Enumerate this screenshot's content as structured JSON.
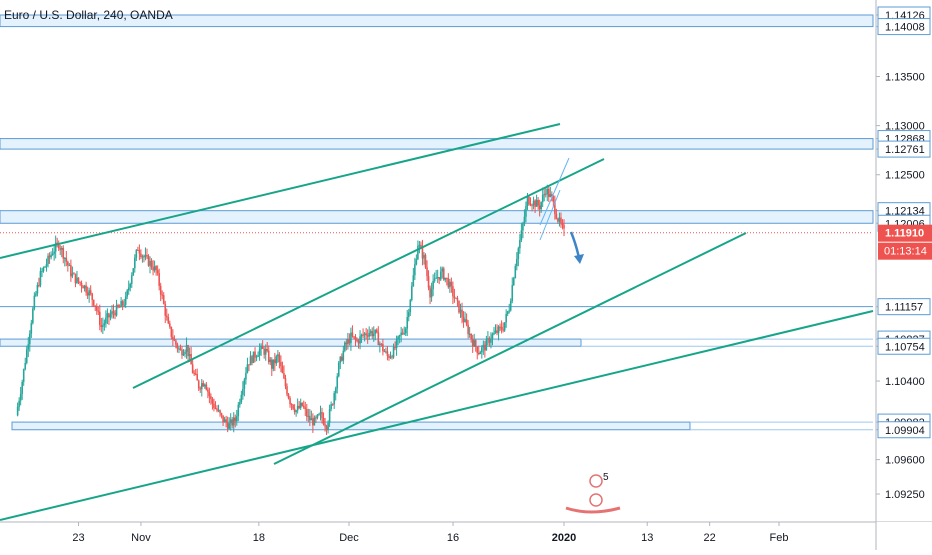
{
  "header": {
    "title": "Euro / U.S. Dollar, 240, OANDA"
  },
  "chart_data": {
    "type": "candlestick",
    "symbol": "EURUSD",
    "timeframe": "240",
    "ylim": [
      1.09,
      1.144
    ],
    "grid": false,
    "x_tick_labels": [
      "23",
      "Nov",
      "18",
      "Dec",
      "16",
      "2020",
      "13",
      "22",
      "Feb"
    ],
    "y_tick_labels": [
      "1.14126",
      "1.14008",
      "1.13500",
      "1.13000",
      "1.12868",
      "1.12761",
      "1.12500",
      "1.12134",
      "1.12006",
      "1.11157",
      "1.10827",
      "1.10754",
      "1.10400",
      "1.09982",
      "1.09904",
      "1.09600",
      "1.09250"
    ],
    "current_price": {
      "value": "1.11910",
      "countdown": "01:13:14"
    },
    "horizontal_zones": [
      {
        "top": 1.14126,
        "bottom": 1.14008
      },
      {
        "top": 1.12868,
        "bottom": 1.12761
      },
      {
        "top": 1.12134,
        "bottom": 1.12006
      },
      {
        "top": 1.10827,
        "bottom": 1.10754
      },
      {
        "top": 1.09982,
        "bottom": 1.09904
      }
    ],
    "horizontal_lines": [
      1.11157
    ],
    "close_series": [
      1.1005,
      1.104,
      1.1082,
      1.1122,
      1.1148,
      1.116,
      1.1172,
      1.118,
      1.1166,
      1.115,
      1.1142,
      1.1138,
      1.113,
      1.1118,
      1.1095,
      1.1104,
      1.111,
      1.1115,
      1.1122,
      1.115,
      1.1176,
      1.1166,
      1.116,
      1.1152,
      1.1125,
      1.1095,
      1.108,
      1.107,
      1.1075,
      1.105,
      1.1035,
      1.104,
      1.102,
      1.101,
      1.1,
      1.0995,
      1.1,
      1.103,
      1.1058,
      1.1065,
      1.1072,
      1.107,
      1.1055,
      1.1065,
      1.104,
      1.102,
      1.101,
      1.1015,
      1.1002,
      1.0998,
      1.1005,
      1.0995,
      1.102,
      1.1055,
      1.1075,
      1.1085,
      1.108,
      1.1087,
      1.109,
      1.1088,
      1.1075,
      1.1065,
      1.107,
      1.1085,
      1.1095,
      1.1135,
      1.118,
      1.1165,
      1.113,
      1.1145,
      1.115,
      1.114,
      1.1125,
      1.111,
      1.1095,
      1.108,
      1.107,
      1.1075,
      1.1085,
      1.109,
      1.1095,
      1.1115,
      1.116,
      1.119,
      1.1225,
      1.1222,
      1.1218,
      1.1235,
      1.1225,
      1.1205,
      1.1191
    ],
    "drawings": {
      "lines": [
        {
          "from": [
            "2019-10-07",
            1.1168
          ],
          "to": [
            "2019-12-31",
            1.13
          ]
        },
        {
          "from": [
            "2019-11-04",
            1.104
          ],
          "to": [
            "2019-12-31",
            1.1238
          ]
        },
        {
          "from": [
            "2019-11-28",
            1.0952
          ],
          "to": [
            "2020-01-22",
            1.1196
          ]
        },
        {
          "from": [
            "2019-10-06",
            1.0908
          ],
          "to": [
            "2020-02-15",
            1.1115
          ]
        },
        {
          "from": [
            "2019-12-31",
            1.12
          ],
          "to": [
            "2020-01-02",
            1.1252
          ]
        }
      ],
      "arrow": {
        "from": [
          "2020-01-01",
          1.12
        ],
        "to": [
          "2020-01-02",
          1.1183
        ]
      }
    }
  }
}
